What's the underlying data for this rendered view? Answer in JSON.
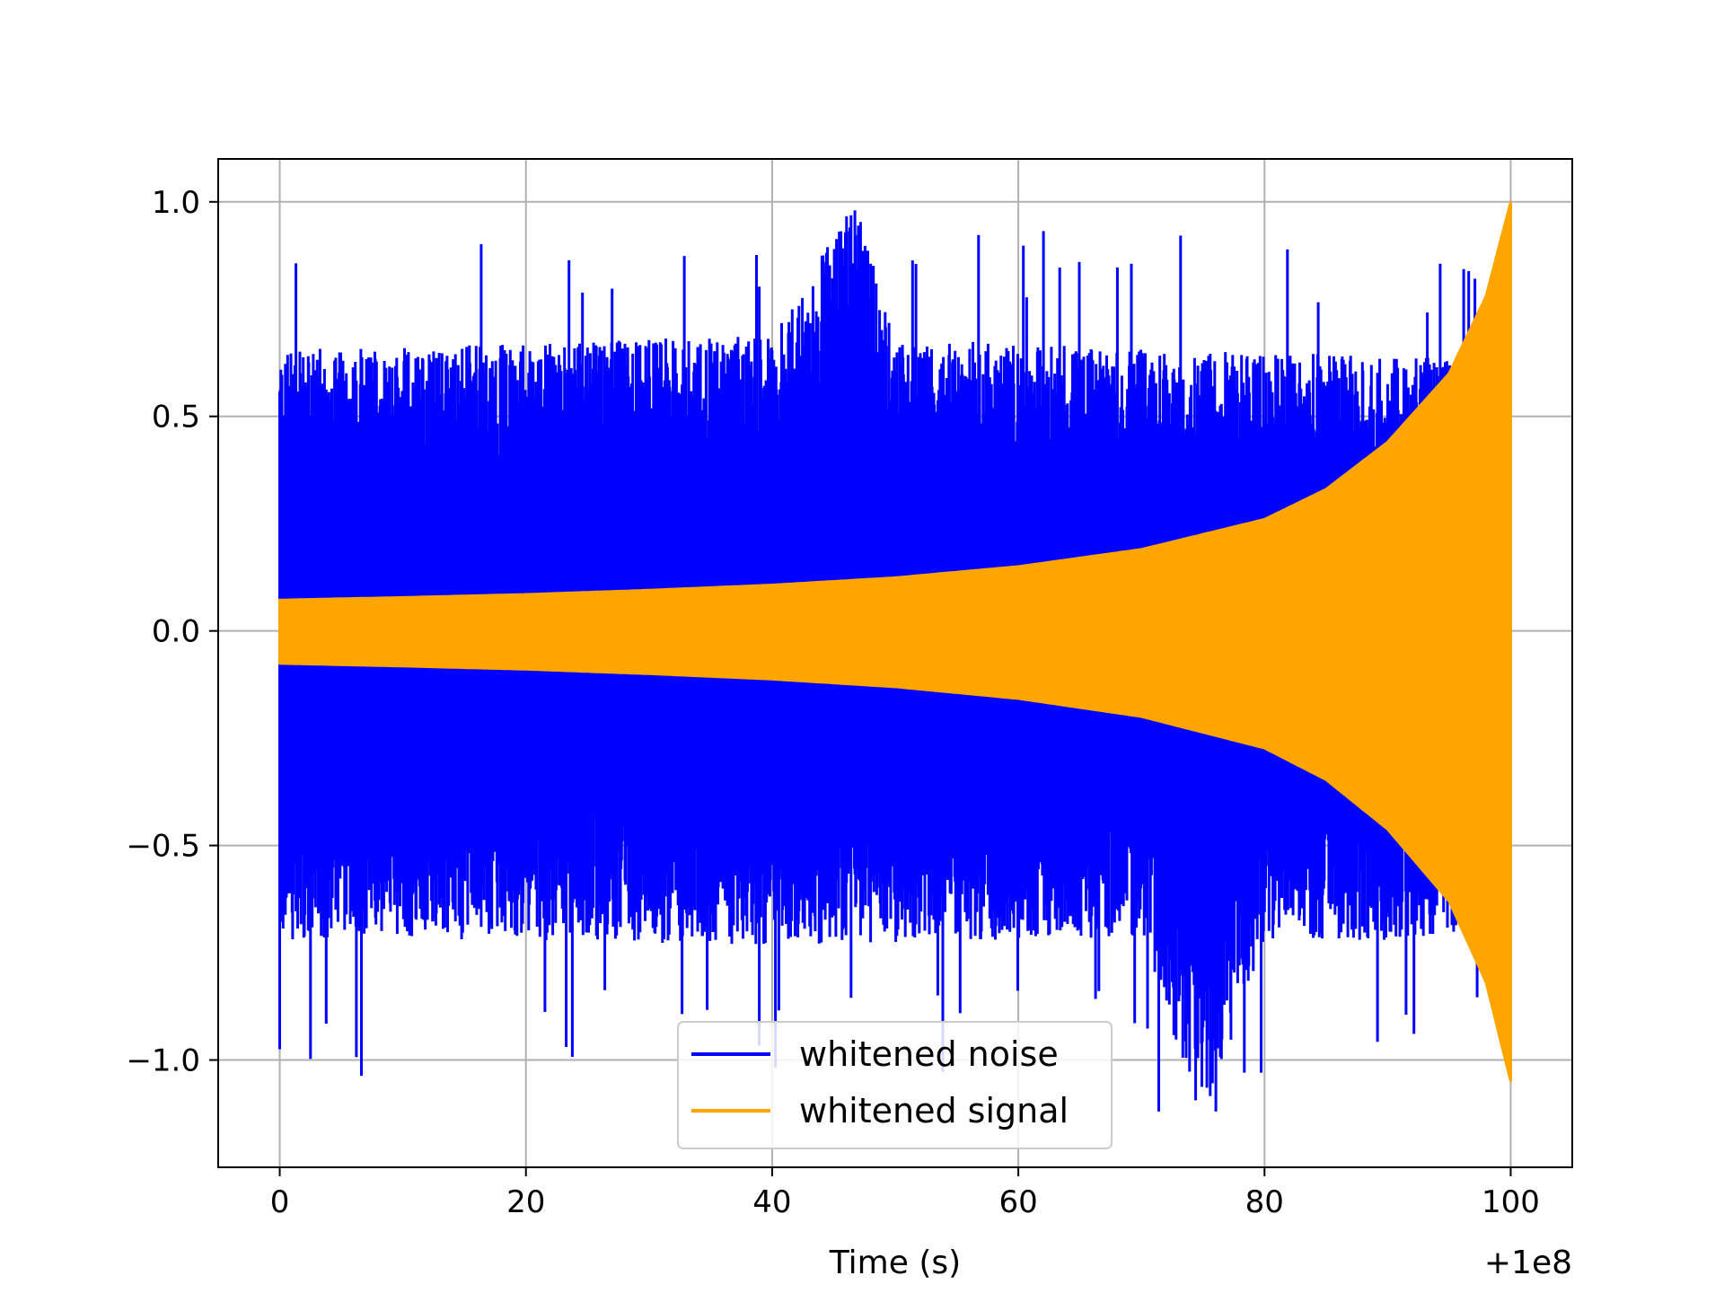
{
  "chart_data": {
    "type": "line",
    "title": "",
    "xlabel": "Time (s)",
    "ylabel": "",
    "x_offset_label": "+1e8",
    "xlim": [
      -5,
      105
    ],
    "ylim": [
      -1.25,
      1.1
    ],
    "xticks": [
      0,
      20,
      40,
      60,
      80,
      100
    ],
    "xtick_labels": [
      "0",
      "20",
      "40",
      "60",
      "80",
      "100"
    ],
    "yticks": [
      -1.0,
      -0.5,
      0.0,
      0.5,
      1.0
    ],
    "ytick_labels": [
      "−1.0",
      "−0.5",
      "0.0",
      "0.5",
      "1.0"
    ],
    "grid": true,
    "legend_position": "lower center",
    "colors": {
      "noise": "#0000ff",
      "signal": "#ffa500",
      "grid": "#b0b0b0"
    },
    "series": [
      {
        "name": "whitened noise",
        "color": "#0000ff",
        "description": "dense noisy oscillation spanning roughly -1.1 to 1.0 over the full time range",
        "x": [
          0,
          10,
          20,
          30,
          40,
          46.7,
          50,
          60,
          70,
          75,
          80,
          90,
          100
        ],
        "upper": [
          0.66,
          0.66,
          0.67,
          0.68,
          0.69,
          1.0,
          0.68,
          0.67,
          0.66,
          0.66,
          0.65,
          0.64,
          0.63
        ],
        "lower": [
          -0.72,
          -0.72,
          -0.72,
          -0.73,
          -0.73,
          -0.73,
          -0.73,
          -0.72,
          -0.72,
          -1.15,
          -0.72,
          -0.72,
          -0.7
        ]
      },
      {
        "name": "whitened signal",
        "color": "#ffa500",
        "description": "chirp whose amplitude grows from about 0.07 at t=0 to about 1.0 at t=100",
        "x": [
          0,
          10,
          20,
          30,
          40,
          50,
          60,
          70,
          80,
          85,
          90,
          95,
          98,
          100
        ],
        "envelope": [
          0.072,
          0.078,
          0.085,
          0.095,
          0.107,
          0.124,
          0.15,
          0.19,
          0.26,
          0.33,
          0.44,
          0.6,
          0.78,
          1.0
        ]
      }
    ],
    "legend": [
      {
        "label": "whitened noise",
        "color": "#0000ff"
      },
      {
        "label": "whitened signal",
        "color": "#ffa500"
      }
    ]
  }
}
